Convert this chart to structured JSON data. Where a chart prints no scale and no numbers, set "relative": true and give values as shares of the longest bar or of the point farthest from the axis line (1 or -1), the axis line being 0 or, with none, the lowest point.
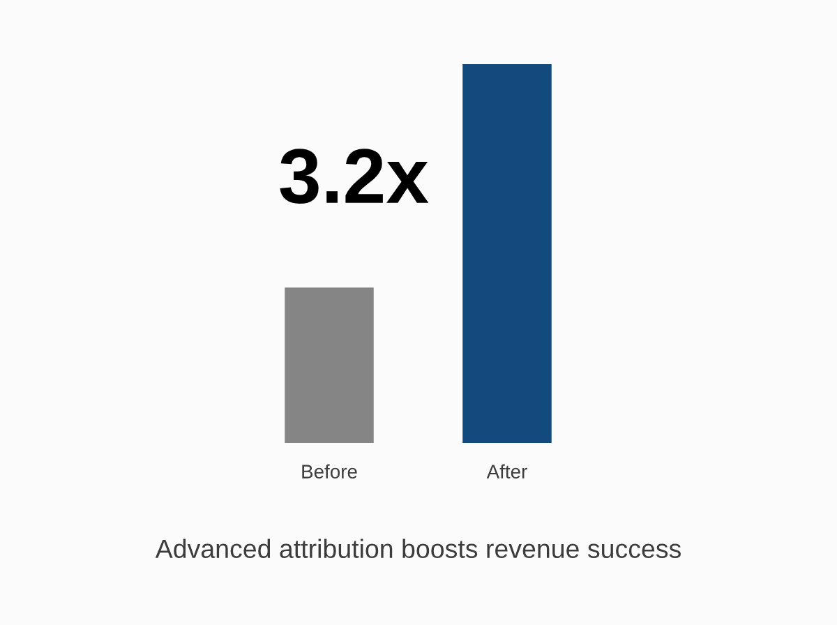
{
  "chart_data": {
    "type": "bar",
    "title": "Advanced attribution boosts revenue success",
    "categories": [
      "Before",
      "After"
    ],
    "values": [
      0.41,
      1
    ],
    "colors": [
      "#858585",
      "#134a7e"
    ],
    "relative": true,
    "annotations": [
      "3.2x"
    ]
  }
}
